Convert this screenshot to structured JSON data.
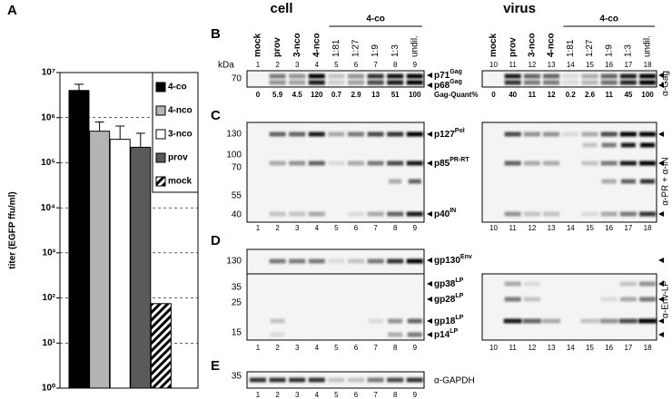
{
  "chart_data": {
    "type": "bar",
    "panel_label": "A",
    "ylabel": "titer (EGFP ffu/ml)",
    "categories": [
      "4-co",
      "4-nco",
      "3-nco",
      "prov",
      "mock"
    ],
    "values": [
      4000000,
      500000,
      330000,
      220000,
      75
    ],
    "errors": [
      1500000,
      300000,
      320000,
      230000,
      null
    ],
    "colors": [
      "#000000",
      "#b4b4b4",
      "#ffffff",
      "#5a5a5a",
      "#000000"
    ],
    "hatched": [
      false,
      false,
      false,
      false,
      true
    ],
    "log_scale": true,
    "ylim": [
      1,
      10000000
    ],
    "yticks": [
      {
        "value": 1,
        "label": "10⁰"
      },
      {
        "value": 10,
        "label": "10¹"
      },
      {
        "value": 100,
        "label": "10²"
      },
      {
        "value": 1000,
        "label": "10³"
      },
      {
        "value": 10000,
        "label": "10⁴"
      },
      {
        "value": 100000,
        "label": "10⁵"
      },
      {
        "value": 1000000,
        "label": "10⁶"
      },
      {
        "value": 10000000,
        "label": "10⁷"
      }
    ],
    "grid": "dashed",
    "legend": "upper right"
  },
  "blots": {
    "groups": [
      {
        "title": "cell",
        "lanes": [
          "mock",
          "prov",
          "3-nco",
          "4-nco",
          "1:81",
          "1:27",
          "1:9",
          "1:3",
          "undil."
        ],
        "bracket": "4-co",
        "numbers": [
          1,
          2,
          3,
          4,
          5,
          6,
          7,
          8,
          9
        ]
      },
      {
        "title": "virus",
        "lanes": [
          "mock",
          "prov",
          "3-nco",
          "4-nco",
          "1:81",
          "1:27",
          "1:9",
          "1:3",
          "undil."
        ],
        "bracket": "4-co",
        "numbers": [
          10,
          11,
          12,
          13,
          14,
          15,
          16,
          17,
          18
        ]
      }
    ],
    "panels": [
      {
        "label": "B",
        "unit": "kDa",
        "markers": [
          70
        ],
        "bands": [
          {
            "name": "p71",
            "sup": "Gag"
          },
          {
            "name": "p68",
            "sup": "Gag"
          }
        ],
        "antibody": "α-Gag",
        "quant": {
          "label": "Gag-Quant%",
          "cell": [
            0,
            5.9,
            4.5,
            120,
            0.7,
            2.9,
            13,
            51,
            100
          ],
          "virus": [
            0,
            40,
            11,
            12,
            0.2,
            2.6,
            11,
            45,
            100
          ]
        }
      },
      {
        "label": "C",
        "markers": [
          130,
          100,
          70,
          55,
          40
        ],
        "bands": [
          {
            "name": "p127",
            "sup": "Pol"
          },
          {
            "name": "p85",
            "sup": "PR-RT"
          },
          {
            "name": "p40",
            "sup": "IN"
          }
        ],
        "antibody": "α-PR + α-IN"
      },
      {
        "label": "D",
        "markers": [
          130,
          35,
          25,
          15
        ],
        "bands": [
          {
            "name": "gp130",
            "sup": "Env"
          },
          {
            "name": "gp38",
            "sup": "LP"
          },
          {
            "name": "gp28",
            "sup": "LP"
          },
          {
            "name": "gp18",
            "sup": "LP"
          },
          {
            "name": "p14",
            "sup": "LP"
          }
        ],
        "antibody": "α-Env-LP"
      },
      {
        "label": "E",
        "markers": [
          35
        ],
        "bands": [],
        "antibody": "α-GAPDH"
      }
    ]
  }
}
